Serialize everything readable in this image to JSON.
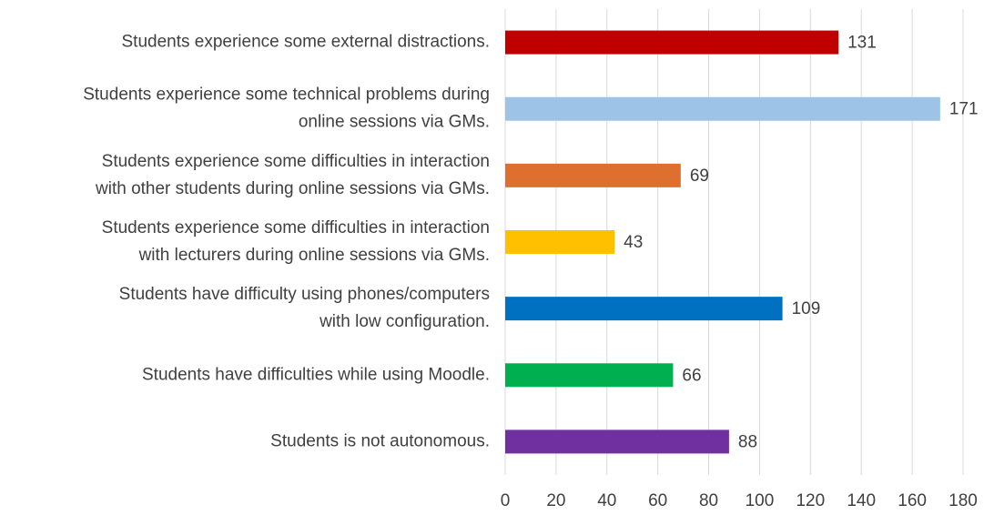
{
  "chart_data": {
    "type": "hbar",
    "categories": [
      [
        "Students experience some external distractions."
      ],
      [
        "Students experience some technical problems during",
        "online sessions via GMs."
      ],
      [
        "Students experience some difficulties in interaction",
        "with other students during online sessions via GMs."
      ],
      [
        "Students experience some difficulties in interaction",
        "with lecturers during online sessions via GMs."
      ],
      [
        "Students have difficulty using phones/computers",
        "with low configuration."
      ],
      [
        "Students have difficulties while using Moodle."
      ],
      [
        "Students is not autonomous."
      ]
    ],
    "values": [
      131,
      171,
      69,
      43,
      109,
      66,
      88
    ],
    "colors": [
      "#c00000",
      "#9dc3e6",
      "#de6f2f",
      "#ffc000",
      "#0070c0",
      "#00b050",
      "#7030a0"
    ],
    "xlim": [
      0,
      180
    ],
    "xticks": [
      0,
      20,
      40,
      60,
      80,
      100,
      120,
      140,
      160,
      180
    ],
    "grid": true
  }
}
